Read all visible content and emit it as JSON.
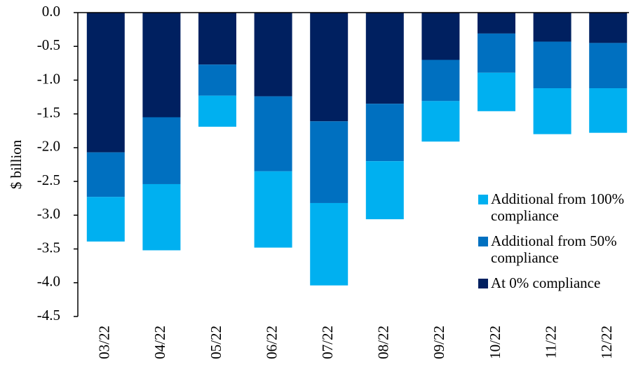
{
  "chart_data": {
    "type": "stacked_bar",
    "y_label": "$ billion",
    "categories": [
      "03/22",
      "04/22",
      "05/22",
      "06/22",
      "07/22",
      "08/22",
      "09/22",
      "10/22",
      "11/22",
      "12/22"
    ],
    "series": [
      {
        "name": "At 0% compliance",
        "color": "#002060",
        "values": [
          -2.07,
          -1.55,
          -0.77,
          -1.24,
          -1.61,
          -1.35,
          -0.7,
          -0.31,
          -0.43,
          -0.45
        ]
      },
      {
        "name": "Additional from 50% compliance",
        "color": "#0070c0",
        "values": [
          -0.66,
          -0.99,
          -0.46,
          -1.11,
          -1.21,
          -0.85,
          -0.61,
          -0.58,
          -0.69,
          -0.67
        ]
      },
      {
        "name": "Additional from 100% compliance",
        "color": "#00b0f0",
        "values": [
          -0.66,
          -0.98,
          -0.46,
          -1.13,
          -1.22,
          -0.86,
          -0.6,
          -0.57,
          -0.68,
          -0.66
        ]
      }
    ],
    "ylim": [
      -4.5,
      0
    ],
    "yticks": [
      {
        "value": 0,
        "label": "0.0"
      },
      -0.5,
      {
        "value": -1,
        "label": "-1.0"
      },
      -1.5,
      {
        "value": -2,
        "label": "-2.0"
      },
      -2.5,
      {
        "value": -3,
        "label": "-3.0"
      },
      -3.5,
      {
        "value": -4,
        "label": "-4.0"
      },
      -4.5
    ],
    "legend": "lower right"
  }
}
